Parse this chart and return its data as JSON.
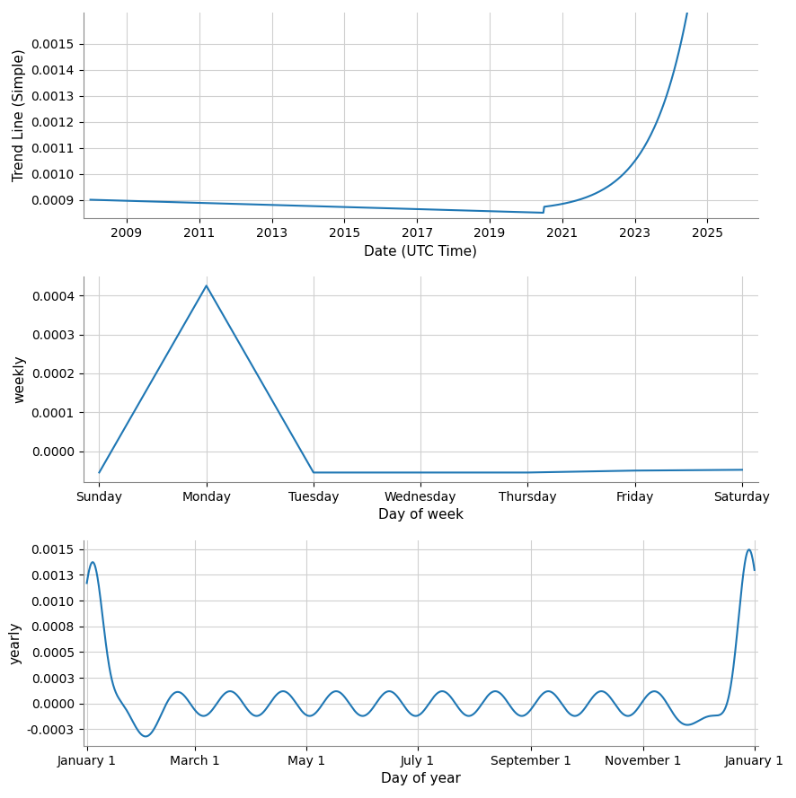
{
  "trend_line_color": "#1f77b4",
  "weekly_color": "#1f77b4",
  "yearly_color": "#1f77b4",
  "line_width": 1.5,
  "grid_color": "#d0d0d0",
  "background_color": "#ffffff",
  "top_xlabel": "Date (UTC Time)",
  "top_ylabel": "Trend Line (Simple)",
  "mid_xlabel": "Day of week",
  "mid_ylabel": "weekly",
  "bot_xlabel": "Day of year",
  "bot_ylabel": "yearly",
  "weekly_xticks": [
    "Sunday",
    "Monday",
    "Tuesday",
    "Wednesday",
    "Thursday",
    "Friday",
    "Saturday"
  ],
  "yearly_xticks": [
    "January 1",
    "March 1",
    "May 1",
    "July 1",
    "September 1",
    "November 1",
    "January 1"
  ],
  "top_yticks": [
    0.0009,
    0.001,
    0.0011,
    0.0012,
    0.0013,
    0.0014,
    0.0015
  ],
  "top_xticks": [
    2009,
    2011,
    2013,
    2015,
    2017,
    2019,
    2021,
    2023,
    2025
  ],
  "yearly_xtick_days": [
    0,
    59,
    120,
    181,
    243,
    304,
    365
  ]
}
